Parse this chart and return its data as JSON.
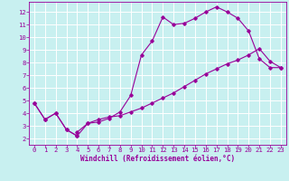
{
  "xlabel": "Windchill (Refroidissement éolien,°C)",
  "bg_color": "#c8f0f0",
  "grid_color": "#aadddd",
  "line_color": "#990099",
  "xlim": [
    -0.5,
    23.5
  ],
  "ylim": [
    1.5,
    12.8
  ],
  "xticks": [
    0,
    1,
    2,
    3,
    4,
    5,
    6,
    7,
    8,
    9,
    10,
    11,
    12,
    13,
    14,
    15,
    16,
    17,
    18,
    19,
    20,
    21,
    22,
    23
  ],
  "yticks": [
    2,
    3,
    4,
    5,
    6,
    7,
    8,
    9,
    10,
    11,
    12
  ],
  "line1_x": [
    0,
    1,
    2,
    3,
    4,
    4,
    5,
    6,
    7,
    8,
    9,
    10,
    11,
    12,
    13,
    14,
    15,
    16,
    17,
    18,
    19,
    20,
    21,
    22,
    23
  ],
  "line1_y": [
    4.8,
    3.5,
    4.0,
    2.7,
    2.2,
    2.5,
    3.2,
    3.3,
    3.6,
    4.1,
    5.4,
    8.6,
    9.7,
    11.6,
    11.0,
    11.1,
    11.5,
    12.0,
    12.4,
    12.0,
    11.5,
    10.5,
    8.3,
    7.6,
    7.6
  ],
  "line2_x": [
    0,
    1,
    2,
    3,
    4,
    5,
    6,
    7,
    8,
    9,
    10,
    11,
    12,
    13,
    14,
    15,
    16,
    17,
    18,
    19,
    20,
    21,
    22,
    23
  ],
  "line2_y": [
    4.8,
    3.5,
    4.0,
    2.7,
    2.2,
    3.2,
    3.5,
    3.7,
    3.8,
    4.1,
    4.4,
    4.8,
    5.2,
    5.6,
    6.1,
    6.6,
    7.1,
    7.5,
    7.9,
    8.2,
    8.6,
    9.1,
    8.1,
    7.6
  ],
  "figsize": [
    3.2,
    2.0
  ],
  "dpi": 100,
  "xlabel_fontsize": 5.5,
  "tick_fontsize": 5.2
}
